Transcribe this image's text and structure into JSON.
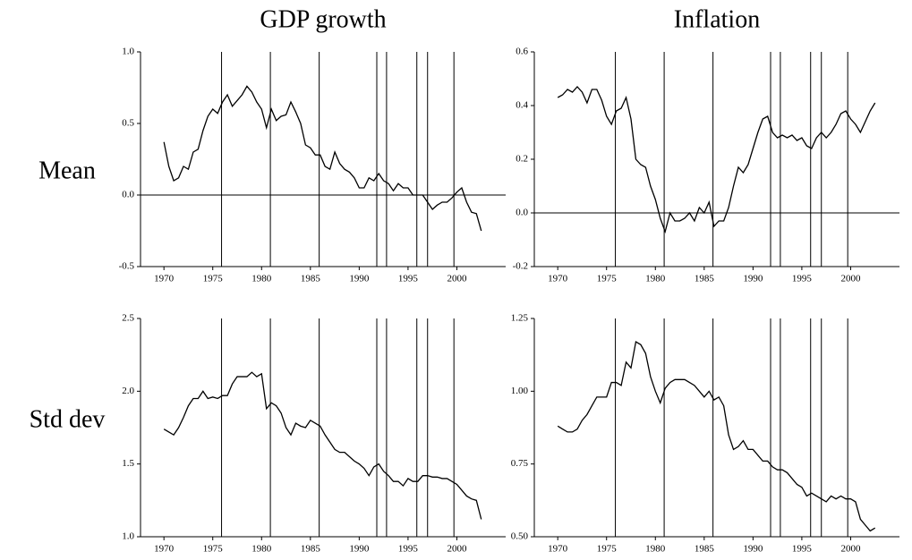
{
  "column_labels": [
    "GDP growth",
    "Inflation"
  ],
  "row_labels": [
    "Mean",
    "Std dev"
  ],
  "chart_data": [
    {
      "type": "line",
      "color": "#000000",
      "x": [
        1970,
        1970.5,
        1971,
        1971.5,
        1972,
        1972.5,
        1973,
        1973.5,
        1974,
        1974.5,
        1975,
        1975.5,
        1976,
        1976.5,
        1977,
        1977.5,
        1978,
        1978.5,
        1979,
        1979.5,
        1980,
        1980.5,
        1981,
        1981.5,
        1982,
        1982.5,
        1983,
        1983.5,
        1984,
        1984.5,
        1985,
        1985.5,
        1986,
        1986.5,
        1987,
        1987.5,
        1988,
        1988.5,
        1989,
        1989.5,
        1990,
        1990.5,
        1991,
        1991.5,
        1992,
        1992.5,
        1993,
        1993.5,
        1994,
        1994.5,
        1995,
        1995.5,
        1996,
        1996.5,
        1997,
        1997.5,
        1998,
        1998.5,
        1999,
        1999.5,
        2000,
        2000.5,
        2001,
        2001.5,
        2002,
        2002.5
      ],
      "values": [
        0.37,
        0.2,
        0.1,
        0.12,
        0.2,
        0.18,
        0.3,
        0.32,
        0.45,
        0.55,
        0.6,
        0.57,
        0.65,
        0.7,
        0.62,
        0.66,
        0.7,
        0.76,
        0.72,
        0.65,
        0.6,
        0.47,
        0.6,
        0.52,
        0.55,
        0.56,
        0.65,
        0.58,
        0.5,
        0.35,
        0.33,
        0.28,
        0.28,
        0.2,
        0.18,
        0.3,
        0.22,
        0.18,
        0.16,
        0.12,
        0.05,
        0.05,
        0.12,
        0.1,
        0.15,
        0.1,
        0.08,
        0.03,
        0.08,
        0.05,
        0.05,
        0.0,
        0.0,
        0.0,
        -0.05,
        -0.1,
        -0.07,
        -0.05,
        -0.05,
        -0.02,
        0.02,
        0.05,
        -0.05,
        -0.12,
        -0.13,
        -0.25
      ],
      "xlim": [
        1967.6,
        2005
      ],
      "xticks": [
        1970,
        1975,
        1980,
        1985,
        1990,
        1995,
        2000
      ],
      "ylim": [
        -0.5,
        1.0
      ],
      "yticks": [
        -0.5,
        {
          "value": 0,
          "label": "0.0"
        },
        0.5,
        {
          "value": 1,
          "label": "1.0"
        }
      ],
      "vlines": [
        1975.9,
        1980.9,
        1985.9,
        1991.8,
        1992.8,
        1995.9,
        1997.0,
        1999.7
      ],
      "hline": 0
    },
    {
      "type": "line",
      "color": "#000000",
      "x": [
        1970,
        1970.5,
        1971,
        1971.5,
        1972,
        1972.5,
        1973,
        1973.5,
        1974,
        1974.5,
        1975,
        1975.5,
        1976,
        1976.5,
        1977,
        1977.5,
        1978,
        1978.5,
        1979,
        1979.5,
        1980,
        1980.5,
        1981,
        1981.5,
        1982,
        1982.5,
        1983,
        1983.5,
        1984,
        1984.5,
        1985,
        1985.5,
        1986,
        1986.5,
        1987,
        1987.5,
        1988,
        1988.5,
        1989,
        1989.5,
        1990,
        1990.5,
        1991,
        1991.5,
        1992,
        1992.5,
        1993,
        1993.5,
        1994,
        1994.5,
        1995,
        1995.5,
        1996,
        1996.5,
        1997,
        1997.5,
        1998,
        1998.5,
        1999,
        1999.5,
        2000,
        2000.5,
        2001,
        2001.5,
        2002,
        2002.5
      ],
      "values": [
        0.43,
        0.44,
        0.46,
        0.45,
        0.47,
        0.45,
        0.41,
        0.46,
        0.46,
        0.42,
        0.36,
        0.33,
        0.38,
        0.39,
        0.43,
        0.35,
        0.2,
        0.18,
        0.17,
        0.1,
        0.05,
        -0.02,
        -0.07,
        0.0,
        -0.03,
        -0.03,
        -0.02,
        0.0,
        -0.03,
        0.02,
        0.0,
        0.04,
        -0.05,
        -0.03,
        -0.03,
        0.02,
        0.1,
        0.17,
        0.15,
        0.18,
        0.24,
        0.3,
        0.35,
        0.36,
        0.3,
        0.28,
        0.29,
        0.28,
        0.29,
        0.27,
        0.28,
        0.25,
        0.24,
        0.28,
        0.3,
        0.28,
        0.3,
        0.33,
        0.37,
        0.38,
        0.35,
        0.33,
        0.3,
        0.34,
        0.38,
        0.41
      ],
      "xlim": [
        1967.6,
        2005
      ],
      "xticks": [
        1970,
        1975,
        1980,
        1985,
        1990,
        1995,
        2000
      ],
      "ylim": [
        -0.2,
        0.6
      ],
      "yticks": [
        -0.2,
        {
          "value": 0,
          "label": "0.0"
        },
        0.2,
        0.4,
        0.6
      ],
      "vlines": [
        1975.9,
        1980.9,
        1985.9,
        1991.8,
        1992.8,
        1995.9,
        1997.0,
        1999.7
      ],
      "hline": 0
    },
    {
      "type": "line",
      "color": "#000000",
      "x": [
        1970,
        1970.5,
        1971,
        1971.5,
        1972,
        1972.5,
        1973,
        1973.5,
        1974,
        1974.5,
        1975,
        1975.5,
        1976,
        1976.5,
        1977,
        1977.5,
        1978,
        1978.5,
        1979,
        1979.5,
        1980,
        1980.5,
        1981,
        1981.5,
        1982,
        1982.5,
        1983,
        1983.5,
        1984,
        1984.5,
        1985,
        1985.5,
        1986,
        1986.5,
        1987,
        1987.5,
        1988,
        1988.5,
        1989,
        1989.5,
        1990,
        1990.5,
        1991,
        1991.5,
        1992,
        1992.5,
        1993,
        1993.5,
        1994,
        1994.5,
        1995,
        1995.5,
        1996,
        1996.5,
        1997,
        1997.5,
        1998,
        1998.5,
        1999,
        1999.5,
        2000,
        2000.5,
        2001,
        2001.5,
        2002,
        2002.5
      ],
      "values": [
        1.74,
        1.72,
        1.7,
        1.75,
        1.82,
        1.9,
        1.95,
        1.95,
        2.0,
        1.95,
        1.96,
        1.95,
        1.97,
        1.97,
        2.05,
        2.1,
        2.1,
        2.1,
        2.13,
        2.1,
        2.12,
        1.88,
        1.92,
        1.9,
        1.85,
        1.75,
        1.7,
        1.78,
        1.76,
        1.75,
        1.8,
        1.78,
        1.76,
        1.7,
        1.65,
        1.6,
        1.58,
        1.58,
        1.55,
        1.52,
        1.5,
        1.47,
        1.42,
        1.48,
        1.5,
        1.45,
        1.42,
        1.38,
        1.38,
        1.35,
        1.4,
        1.38,
        1.38,
        1.42,
        1.42,
        1.41,
        1.41,
        1.4,
        1.4,
        1.38,
        1.36,
        1.32,
        1.28,
        1.26,
        1.25,
        1.12
      ],
      "xlim": [
        1967.6,
        2005
      ],
      "xticks": [
        1970,
        1975,
        1980,
        1985,
        1990,
        1995,
        2000
      ],
      "ylim": [
        1.0,
        2.5
      ],
      "yticks": [
        {
          "value": 1,
          "label": "1.0"
        },
        1.5,
        {
          "value": 2,
          "label": "2.0"
        },
        2.5
      ],
      "vlines": [
        1975.9,
        1980.9,
        1985.9,
        1991.8,
        1992.8,
        1995.9,
        1997.0,
        1999.7
      ]
    },
    {
      "type": "line",
      "color": "#000000",
      "x": [
        1970,
        1970.5,
        1971,
        1971.5,
        1972,
        1972.5,
        1973,
        1973.5,
        1974,
        1974.5,
        1975,
        1975.5,
        1976,
        1976.5,
        1977,
        1977.5,
        1978,
        1978.5,
        1979,
        1979.5,
        1980,
        1980.5,
        1981,
        1981.5,
        1982,
        1982.5,
        1983,
        1983.5,
        1984,
        1984.5,
        1985,
        1985.5,
        1986,
        1986.5,
        1987,
        1987.5,
        1988,
        1988.5,
        1989,
        1989.5,
        1990,
        1990.5,
        1991,
        1991.5,
        1992,
        1992.5,
        1993,
        1993.5,
        1994,
        1994.5,
        1995,
        1995.5,
        1996,
        1996.5,
        1997,
        1997.5,
        1998,
        1998.5,
        1999,
        1999.5,
        2000,
        2000.5,
        2001,
        2001.5,
        2002,
        2002.5
      ],
      "values": [
        0.88,
        0.87,
        0.86,
        0.86,
        0.87,
        0.9,
        0.92,
        0.95,
        0.98,
        0.98,
        0.98,
        1.03,
        1.03,
        1.02,
        1.1,
        1.08,
        1.17,
        1.16,
        1.13,
        1.05,
        1.0,
        0.96,
        1.01,
        1.03,
        1.04,
        1.04,
        1.04,
        1.03,
        1.02,
        1.0,
        0.98,
        1.0,
        0.97,
        0.98,
        0.95,
        0.85,
        0.8,
        0.81,
        0.83,
        0.8,
        0.8,
        0.78,
        0.76,
        0.76,
        0.74,
        0.73,
        0.73,
        0.72,
        0.7,
        0.68,
        0.67,
        0.64,
        0.65,
        0.64,
        0.63,
        0.62,
        0.64,
        0.63,
        0.64,
        0.63,
        0.63,
        0.62,
        0.56,
        0.54,
        0.52,
        0.53
      ],
      "xlim": [
        1967.6,
        2005
      ],
      "xticks": [
        1970,
        1975,
        1980,
        1985,
        1990,
        1995,
        2000
      ],
      "ylim": [
        0.5,
        1.25
      ],
      "yticks": [
        {
          "value": 0.5,
          "label": "0.50"
        },
        0.75,
        {
          "value": 1,
          "label": "1.00"
        },
        1.25
      ],
      "vlines": [
        1975.9,
        1980.9,
        1985.9,
        1991.8,
        1992.8,
        1995.9,
        1997.0,
        1999.7
      ]
    }
  ]
}
